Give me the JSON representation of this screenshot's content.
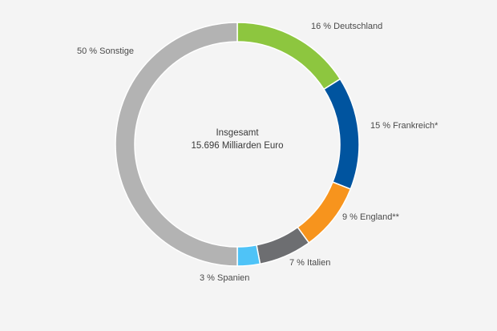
{
  "chart_data": {
    "type": "pie",
    "style": "donut",
    "center_text": [
      "Insgesamt",
      "15.696 Milliarden Euro"
    ],
    "slices": [
      {
        "label": "16 % Deutschland",
        "value": 16,
        "color": "#8dc63f"
      },
      {
        "label": "15 % Frankreich*",
        "value": 15,
        "color": "#00549f"
      },
      {
        "label": "9 % England**",
        "value": 9,
        "color": "#f7941d"
      },
      {
        "label": "7 % Italien",
        "value": 7,
        "color": "#6d6e71"
      },
      {
        "label": "3 % Spanien",
        "value": 3,
        "color": "#4fc3f7"
      },
      {
        "label": "50 % Sonstige",
        "value": 50,
        "color": "#b3b3b3"
      }
    ],
    "legend": "none"
  }
}
